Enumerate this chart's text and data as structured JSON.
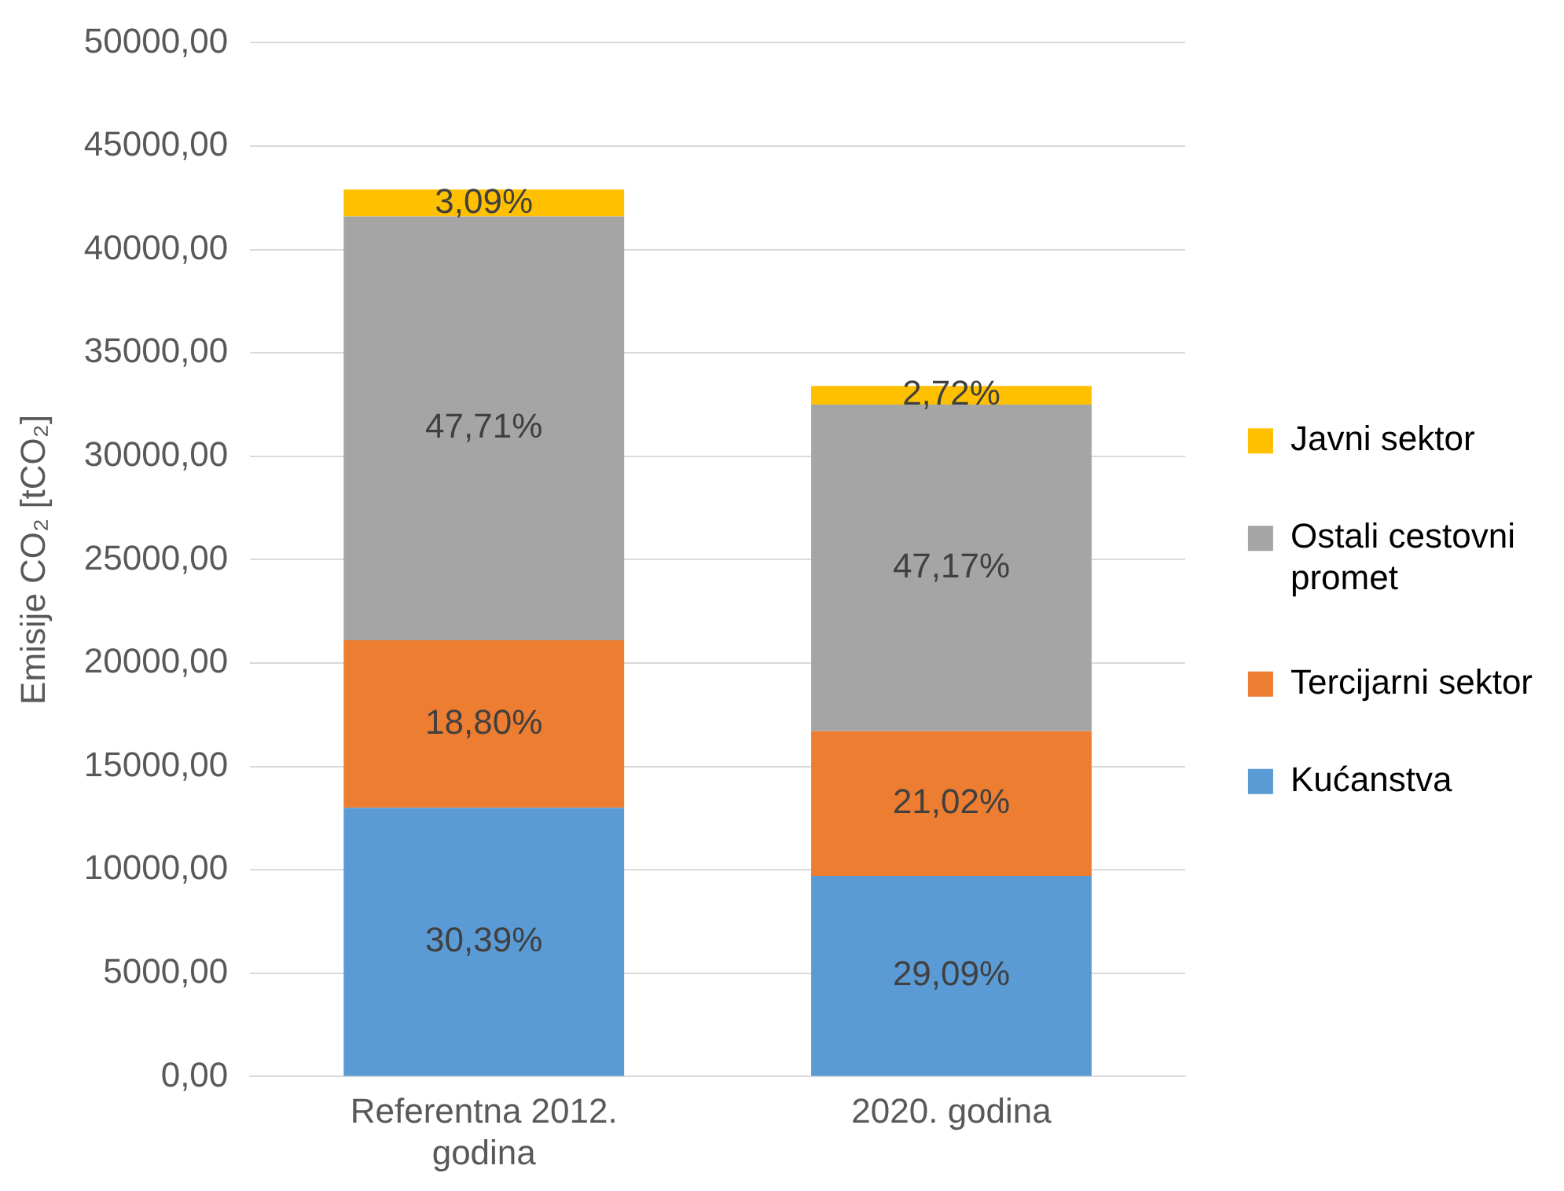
{
  "chart_data": {
    "type": "bar",
    "stacked": true,
    "ylabel": "Emisije CO₂ [tCO₂]",
    "categories": [
      "Referentna 2012. godina",
      "2020. godina"
    ],
    "series": [
      {
        "name": "Kućanstva",
        "color": "#5b9bd5",
        "values": [
          13000,
          9700
        ]
      },
      {
        "name": "Tercijarni sektor",
        "color": "#ed7d31",
        "values": [
          8100,
          7000
        ]
      },
      {
        "name": "Ostali cestovni promet",
        "color": "#a5a5a5",
        "values": [
          20500,
          15800
        ]
      },
      {
        "name": "Javni sektor",
        "color": "#ffc000",
        "values": [
          1300,
          900
        ]
      }
    ],
    "annotations": [
      "30,39%",
      "29,09%",
      "18,80%",
      "21,02%",
      "47,71%",
      "47,17%",
      "3,09%",
      "2,72%"
    ],
    "ylim": [
      0,
      50000
    ],
    "yticks": [
      {
        "value": 0,
        "label": "0,00"
      },
      {
        "value": 5000,
        "label": "5000,00"
      },
      {
        "value": 10000,
        "label": "10000,00"
      },
      {
        "value": 15000,
        "label": "15000,00"
      },
      {
        "value": 20000,
        "label": "20000,00"
      },
      {
        "value": 25000,
        "label": "25000,00"
      },
      {
        "value": 30000,
        "label": "30000,00"
      },
      {
        "value": 35000,
        "label": "35000,00"
      },
      {
        "value": 40000,
        "label": "40000,00"
      },
      {
        "value": 45000,
        "label": "45000,00"
      },
      {
        "value": 50000,
        "label": "50000,00"
      }
    ],
    "grid": "y",
    "legend": "right"
  }
}
